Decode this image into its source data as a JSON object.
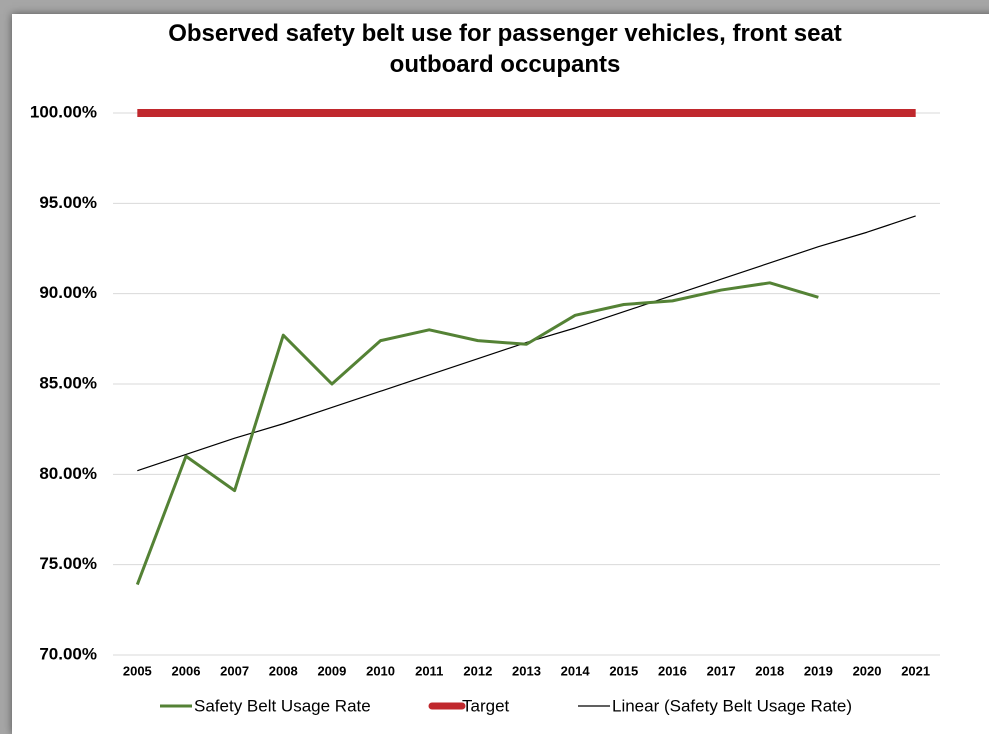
{
  "chart_data": {
    "type": "line",
    "title": "Observed safety belt use for passenger vehicles, front seat outboard occupants",
    "categories": [
      "2005",
      "2006",
      "2007",
      "2008",
      "2009",
      "2010",
      "2011",
      "2012",
      "2013",
      "2014",
      "2015",
      "2016",
      "2017",
      "2018",
      "2019",
      "2020",
      "2021"
    ],
    "series": [
      {
        "name": "Safety Belt Usage Rate",
        "color": "#548235",
        "width": 3,
        "values": [
          73.9,
          81.0,
          79.1,
          87.7,
          85.0,
          87.4,
          88.0,
          87.4,
          87.2,
          88.8,
          89.4,
          89.6,
          90.2,
          90.6,
          89.8,
          null,
          null
        ]
      },
      {
        "name": "Target",
        "color": "#c0282d",
        "width": 8,
        "values": [
          100,
          100,
          100,
          100,
          100,
          100,
          100,
          100,
          100,
          100,
          100,
          100,
          100,
          100,
          100,
          100,
          100
        ]
      },
      {
        "name": "Linear (Safety Belt Usage Rate)",
        "color": "#000000",
        "width": 1.2,
        "values": [
          80.2,
          81.1,
          82.0,
          82.8,
          83.7,
          84.6,
          85.5,
          86.4,
          87.3,
          88.1,
          89.0,
          89.9,
          90.8,
          91.7,
          92.6,
          93.4,
          94.3
        ]
      }
    ],
    "ylim": [
      70,
      100
    ],
    "yticks": [
      {
        "value": 70,
        "label": "70.00%"
      },
      {
        "value": 75,
        "label": "75.00%"
      },
      {
        "value": 80,
        "label": "80.00%"
      },
      {
        "value": 85,
        "label": "85.00%"
      },
      {
        "value": 90,
        "label": "90.00%"
      },
      {
        "value": 95,
        "label": "95.00%"
      },
      {
        "value": 100,
        "label": "100.00%"
      }
    ],
    "grid": true,
    "legend": "bottom"
  }
}
